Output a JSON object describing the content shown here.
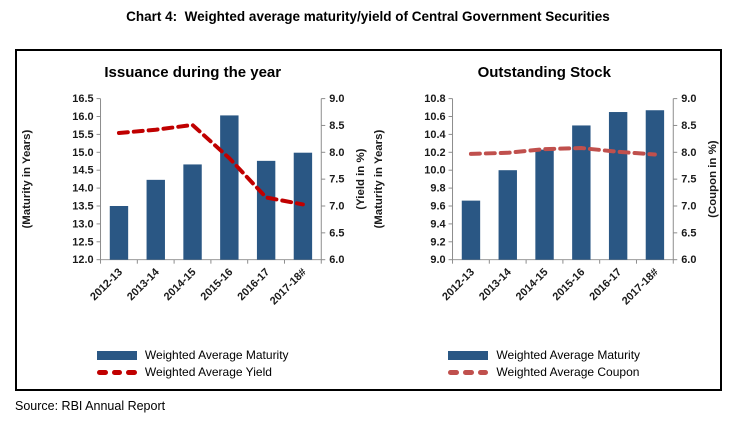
{
  "page": {
    "title": "Chart 4:  Weighted average maturity/yield of Central Government Securities",
    "source": "Source: RBI Annual Report"
  },
  "colors": {
    "bar": "#2A5784",
    "yield_line": "#C00000",
    "coupon_line": "#C0504D",
    "axis": "#8C8C8C",
    "tick_text": "#1A1A1A"
  },
  "chart_data": [
    {
      "type": "bar",
      "title": "Issuance during the year",
      "categories": [
        "2012-13",
        "2013-14",
        "2014-15",
        "2015-16",
        "2016-17",
        "2017-18#"
      ],
      "series": [
        {
          "name": "Weighted Average Maturity",
          "kind": "bar",
          "axis": "left",
          "color": "#2A5784",
          "values": [
            13.5,
            14.23,
            14.66,
            16.03,
            14.76,
            14.99
          ]
        },
        {
          "name": "Weighted Average Yield",
          "kind": "dashed-line",
          "axis": "right",
          "color": "#C00000",
          "values": [
            8.36,
            8.42,
            8.51,
            7.89,
            7.16,
            7.03
          ]
        }
      ],
      "left_axis": {
        "label": "(Maturity in Years)",
        "min": 12.0,
        "max": 16.5,
        "step": 0.5
      },
      "right_axis": {
        "label": "(Yield in %)",
        "min": 6.0,
        "max": 9.0,
        "step": 0.5
      },
      "grid": false,
      "legend_position": "bottom"
    },
    {
      "type": "bar",
      "title": "Outstanding Stock",
      "categories": [
        "2012-13",
        "2013-14",
        "2014-15",
        "2015-16",
        "2016-17",
        "2017-18#"
      ],
      "series": [
        {
          "name": "Weighted Average Maturity",
          "kind": "bar",
          "axis": "left",
          "color": "#2A5784",
          "values": [
            9.66,
            10.0,
            10.23,
            10.5,
            10.65,
            10.67
          ]
        },
        {
          "name": "Weighted Average Coupon",
          "kind": "dashed-line",
          "axis": "right",
          "color": "#C0504D",
          "values": [
            7.97,
            7.99,
            8.06,
            8.08,
            8.01,
            7.96
          ]
        }
      ],
      "left_axis": {
        "label": "(Maturity in Years)",
        "min": 9.0,
        "max": 10.8,
        "step": 0.2
      },
      "right_axis": {
        "label": "(Coupon in %)",
        "min": 6.0,
        "max": 9.0,
        "step": 0.5
      },
      "grid": false,
      "legend_position": "bottom"
    }
  ]
}
